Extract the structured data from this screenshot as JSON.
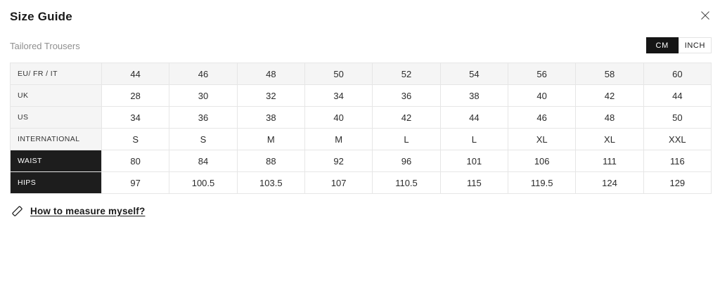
{
  "modal": {
    "title": "Size Guide"
  },
  "product": {
    "name": "Tailored Trousers"
  },
  "unit_toggle": {
    "options": [
      {
        "label": "CM",
        "selected": true
      },
      {
        "label": "INCH",
        "selected": false
      }
    ]
  },
  "size_table": {
    "rows": [
      {
        "label": "EU/ FR / IT",
        "is_header": true,
        "emphasis": false,
        "values": [
          "44",
          "46",
          "48",
          "50",
          "52",
          "54",
          "56",
          "58",
          "60"
        ]
      },
      {
        "label": "UK",
        "is_header": false,
        "emphasis": false,
        "values": [
          "28",
          "30",
          "32",
          "34",
          "36",
          "38",
          "40",
          "42",
          "44"
        ]
      },
      {
        "label": "US",
        "is_header": false,
        "emphasis": false,
        "values": [
          "34",
          "36",
          "38",
          "40",
          "42",
          "44",
          "46",
          "48",
          "50"
        ]
      },
      {
        "label": "INTERNATIONAL",
        "is_header": false,
        "emphasis": false,
        "values": [
          "S",
          "S",
          "M",
          "M",
          "L",
          "L",
          "XL",
          "XL",
          "XXL"
        ]
      },
      {
        "label": "WAIST",
        "is_header": false,
        "emphasis": true,
        "values": [
          "80",
          "84",
          "88",
          "92",
          "96",
          "101",
          "106",
          "111",
          "116"
        ]
      },
      {
        "label": "HIPS",
        "is_header": false,
        "emphasis": true,
        "values": [
          "97",
          "100.5",
          "103.5",
          "107",
          "110.5",
          "115",
          "119.5",
          "124",
          "129"
        ]
      }
    ]
  },
  "footer": {
    "measure_link_label": "How to measure myself?"
  },
  "icons": {
    "close": "x-cross",
    "measure": "ruler"
  },
  "colors": {
    "highlight_dark": "#1d1d1d",
    "row_gray": "#f5f5f5",
    "border": "#e6e6e6",
    "subtitle_gray": "#8f8f8f",
    "toggle_selected_bg": "#151515"
  }
}
